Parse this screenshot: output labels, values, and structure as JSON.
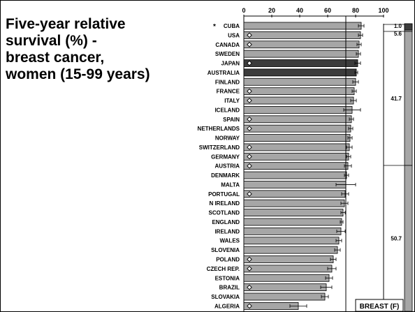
{
  "title": "Five-year relative\nsurvival (%) -\nbreast cancer,\nwomen (15-99 years)",
  "tag": "BREAST (F)",
  "colors": {
    "bar": "#a6a6a6",
    "highlight": "#3c3c3c",
    "sideLight": "#a6a6a6",
    "sideDark": "#3c3c3c",
    "text": "#000000"
  },
  "chart_data": {
    "type": "bar",
    "orientation": "horizontal",
    "xlim": [
      0,
      100
    ],
    "xticks": [
      0,
      20,
      40,
      60,
      80,
      100
    ],
    "reference_line": 73,
    "categories": [
      "CUBA",
      "USA",
      "CANADA",
      "SWEDEN",
      "JAPAN",
      "AUSTRALIA",
      "FINLAND",
      "FRANCE",
      "ITALY",
      "ICELAND",
      "SPAIN",
      "NETHERLANDS",
      "NORWAY",
      "SWITZERLAND",
      "GERMANY",
      "AUSTRIA",
      "DENMARK",
      "MALTA",
      "PORTUGAL",
      "N IRELAND",
      "SCOTLAND",
      "ENGLAND",
      "IRELAND",
      "WALES",
      "SLOVENIA",
      "POLAND",
      "CZECH REP.",
      "ESTONIA",
      "BRAZIL",
      "SLOVAKIA",
      "ALGERIA"
    ],
    "values": [
      84,
      83.5,
      82.5,
      82,
      81.5,
      80.5,
      80,
      79,
      78.5,
      77.5,
      77,
      76.5,
      76,
      75.5,
      75,
      74.5,
      73.5,
      73,
      72.5,
      72,
      71,
      70,
      69.5,
      68,
      67,
      64,
      63,
      61,
      59,
      58,
      39
    ],
    "errors": [
      2,
      1.5,
      1.5,
      1.5,
      2,
      1,
      2,
      1.5,
      2,
      6,
      1.5,
      1.5,
      1.5,
      2,
      1.5,
      2.5,
      1.5,
      7,
      2.5,
      2.5,
      1.5,
      1,
      3,
      2,
      2,
      2,
      3,
      2.5,
      4,
      2.5,
      6
    ],
    "markers": {
      "star": [
        0
      ],
      "diamond": [
        1,
        2,
        4,
        7,
        8,
        10,
        11,
        13,
        14,
        15,
        18,
        25,
        26,
        28,
        30
      ]
    },
    "highlight": [
      4,
      5
    ],
    "side_groups": [
      {
        "label": "1.0",
        "rows": [
          0
        ],
        "tone": "dark"
      },
      {
        "label": "5.6",
        "rows": [
          1,
          2,
          3
        ],
        "tone": "light"
      },
      {
        "label": "41.7",
        "rows": [
          4,
          5,
          6,
          7,
          8,
          9,
          10,
          11,
          12,
          13,
          14,
          15
        ],
        "tone": "light"
      },
      {
        "label": "50.7",
        "rows": [
          16,
          17,
          18,
          19,
          20,
          21,
          22,
          23,
          24,
          25,
          26,
          27,
          28,
          29,
          30
        ],
        "tone": "light"
      }
    ]
  }
}
